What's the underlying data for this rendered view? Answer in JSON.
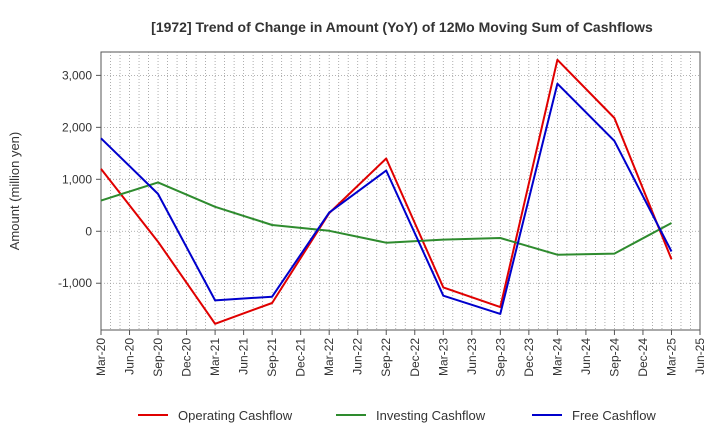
{
  "chart_data": {
    "type": "line",
    "title": "[1972]  Trend of Change in Amount (YoY) of 12Mo Moving Sum of Cashflows",
    "xlabel": "",
    "ylabel": "Amount (million yen)",
    "ylim": [
      -1900,
      3450
    ],
    "yticks": [
      -1000,
      0,
      1000,
      2000,
      3000
    ],
    "ytick_labels": [
      "-1,000",
      "0",
      "1,000",
      "2,000",
      "3,000"
    ],
    "categories": [
      "Mar-20",
      "Jun-20",
      "Sep-20",
      "Dec-20",
      "Mar-21",
      "Jun-21",
      "Sep-21",
      "Dec-21",
      "Mar-22",
      "Jun-22",
      "Sep-22",
      "Dec-22",
      "Mar-23",
      "Jun-23",
      "Sep-23",
      "Dec-23",
      "Mar-24",
      "Jun-24",
      "Sep-24",
      "Dec-24",
      "Mar-25",
      "Jun-25"
    ],
    "grid": true,
    "legend_position": "bottom",
    "series": [
      {
        "name": "Operating Cashflow",
        "color": "#e00000",
        "points": [
          [
            0,
            1200
          ],
          [
            2,
            -200
          ],
          [
            4,
            -1780
          ],
          [
            6,
            -1380
          ],
          [
            8,
            350
          ],
          [
            10,
            1400
          ],
          [
            12,
            -1080
          ],
          [
            14,
            -1460
          ],
          [
            16,
            3300
          ],
          [
            18,
            2180
          ],
          [
            20,
            -540
          ]
        ]
      },
      {
        "name": "Investing Cashflow",
        "color": "#2e8b2e",
        "points": [
          [
            0,
            590
          ],
          [
            2,
            940
          ],
          [
            4,
            470
          ],
          [
            6,
            120
          ],
          [
            8,
            10
          ],
          [
            10,
            -220
          ],
          [
            12,
            -160
          ],
          [
            14,
            -130
          ],
          [
            16,
            -450
          ],
          [
            18,
            -430
          ],
          [
            20,
            160
          ]
        ]
      },
      {
        "name": "Free Cashflow",
        "color": "#0000cc",
        "points": [
          [
            0,
            1790
          ],
          [
            2,
            720
          ],
          [
            4,
            -1330
          ],
          [
            6,
            -1260
          ],
          [
            8,
            360
          ],
          [
            10,
            1170
          ],
          [
            12,
            -1240
          ],
          [
            14,
            -1590
          ],
          [
            16,
            2840
          ],
          [
            18,
            1740
          ],
          [
            20,
            -390
          ]
        ]
      }
    ]
  }
}
